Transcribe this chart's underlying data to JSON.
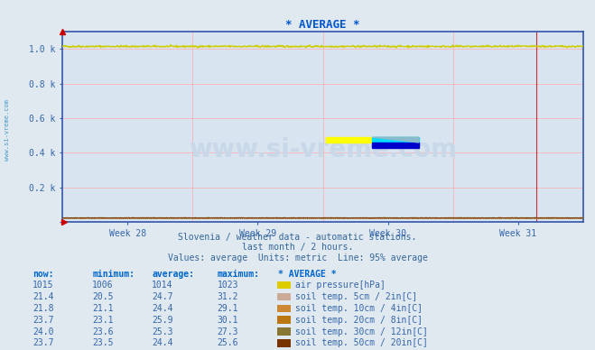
{
  "title": "* AVERAGE *",
  "background_color": "#e0e8f0",
  "plot_bg_color": "#d8e4f0",
  "grid_color": "#ffaaaa",
  "title_color": "#0055cc",
  "watermark_text": "www.si-vreme.com",
  "watermark_color": "#c8d8e8",
  "sidebar_text": "www.si-vreme.com",
  "sidebar_color": "#4499cc",
  "subtitle1": "Slovenia / weather data - automatic stations.",
  "subtitle2": "last month / 2 hours.",
  "subtitle3": "Values: average  Units: metric  Line: 95% average",
  "x_tick_labels": [
    "Week 28",
    "Week 29",
    "Week 30",
    "Week 31"
  ],
  "y_tick_labels": [
    "",
    "0.2 k",
    "0.4 k",
    "0.6 k",
    "0.8 k",
    "1.0 k"
  ],
  "ylim": [
    0,
    1100
  ],
  "xlim": [
    0,
    336
  ],
  "axis_color": "#3355aa",
  "arrow_color": "#cc0000",
  "air_pressure_value": 1014,
  "air_pressure_min": 1006,
  "air_pressure_max": 1023,
  "air_line_color": "#cccc00",
  "air_dot_color": "#ffff00",
  "red_vline_x": 306,
  "red_vline_color": "#cc0000",
  "soil_data": [
    {
      "label": "air pressure[hPa]",
      "color": "#ddcc00",
      "swatch_color": "#ddcc00",
      "line_color": "#cccc00",
      "now": "1015",
      "min": "1006",
      "avg": "1014",
      "max": "1023",
      "val": 1014,
      "noise": 3.0
    },
    {
      "label": "soil temp. 5cm / 2in[C]",
      "color": "#ccaa99",
      "swatch_color": "#ccaa99",
      "line_color": "#ddbbaa",
      "now": "21.4",
      "min": "20.5",
      "avg": "24.7",
      "max": "31.2",
      "val": 24.7,
      "noise": 1.5
    },
    {
      "label": "soil temp. 10cm / 4in[C]",
      "color": "#cc8833",
      "swatch_color": "#cc8833",
      "line_color": "#cc8833",
      "now": "21.8",
      "min": "21.1",
      "avg": "24.4",
      "max": "29.1",
      "val": 24.4,
      "noise": 1.2
    },
    {
      "label": "soil temp. 20cm / 8in[C]",
      "color": "#bb7711",
      "swatch_color": "#bb7711",
      "line_color": "#bb7711",
      "now": "23.7",
      "min": "23.1",
      "avg": "25.9",
      "max": "30.1",
      "val": 25.9,
      "noise": 0.8
    },
    {
      "label": "soil temp. 30cm / 12in[C]",
      "color": "#887733",
      "swatch_color": "#887733",
      "line_color": "#887733",
      "now": "24.0",
      "min": "23.6",
      "avg": "25.3",
      "max": "27.3",
      "val": 25.3,
      "noise": 0.4
    },
    {
      "label": "soil temp. 50cm / 20in[C]",
      "color": "#773300",
      "swatch_color": "#773300",
      "line_color": "#773300",
      "now": "23.7",
      "min": "23.5",
      "avg": "24.4",
      "max": "25.6",
      "val": 24.4,
      "noise": 0.2
    }
  ],
  "table_header_color": "#0066cc",
  "table_value_color": "#3366aa",
  "headers": [
    "now:",
    "minimum:",
    "average:",
    "maximum:",
    "* AVERAGE *"
  ]
}
